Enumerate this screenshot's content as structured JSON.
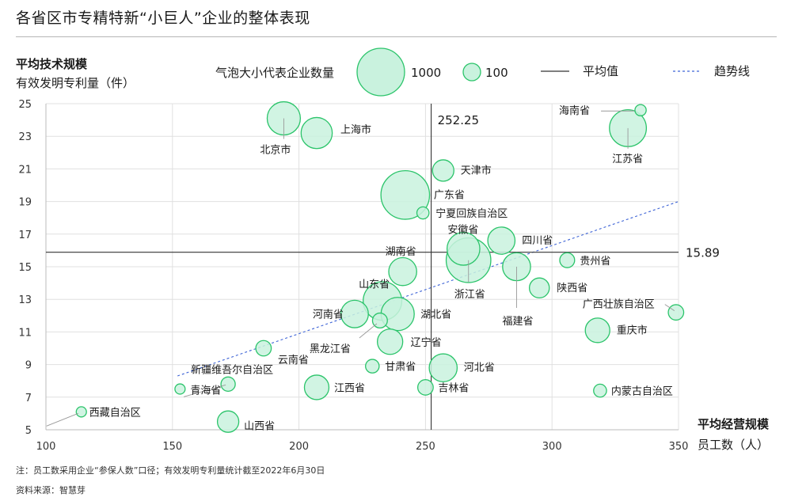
{
  "title": "各省区市专精特新“小巨人”企业的整体表现",
  "note": "注：员工数采用企业“参保人数”口径；有效发明专利量统计截至2022年6月30日",
  "source": "资料来源：智慧芽",
  "colors": {
    "bubble_fill": "#c9f2de",
    "bubble_stroke": "#2bc46a",
    "grid": "#e0e0e0",
    "avg_line": "#333333",
    "trend_line": "#3d63d6",
    "leader": "#999999"
  },
  "legend": {
    "size_label": "气泡大小代表企业数量",
    "big_label": "1000",
    "small_label": "100",
    "avg_label": "平均值",
    "trend_label": "趋势线"
  },
  "chart_data": {
    "type": "scatter",
    "ylabel_bold": "平均技术规模",
    "ylabel": "有效发明专利量（件）",
    "xlabel_bold": "平均经营规模",
    "xlabel": "员工数（人）",
    "xlim": [
      100,
      350
    ],
    "ylim": [
      5,
      25
    ],
    "x_ticks": [
      "100",
      "150",
      "200",
      "250",
      "300",
      "350"
    ],
    "y_ticks": [
      "5",
      "7",
      "9",
      "11",
      "13",
      "15",
      "17",
      "19",
      "21",
      "23",
      "25"
    ],
    "grid": true,
    "avg_x": 252.25,
    "avg_x_label": "252.25",
    "avg_y": 15.89,
    "avg_y_label": "15.89",
    "trend": {
      "x": [
        152,
        350
      ],
      "y": [
        8.3,
        19
      ]
    },
    "points": [
      {
        "name": "北京市",
        "x": 194,
        "y": 24.1,
        "size": 700
      },
      {
        "name": "上海市",
        "x": 207,
        "y": 23.2,
        "size": 600
      },
      {
        "name": "海南省",
        "x": 335,
        "y": 24.6,
        "size": 30
      },
      {
        "name": "江苏省",
        "x": 330,
        "y": 23.5,
        "size": 900
      },
      {
        "name": "天津市",
        "x": 257,
        "y": 20.9,
        "size": 230
      },
      {
        "name": "广东省",
        "x": 242,
        "y": 19.4,
        "size": 1700
      },
      {
        "name": "宁夏回族自治区",
        "x": 249,
        "y": 18.3,
        "size": 40
      },
      {
        "name": "安徽省",
        "x": 265,
        "y": 16.1,
        "size": 680
      },
      {
        "name": "四川省",
        "x": 280,
        "y": 16.6,
        "size": 430
      },
      {
        "name": "贵州省",
        "x": 306,
        "y": 15.4,
        "size": 80
      },
      {
        "name": "湖南省",
        "x": 241,
        "y": 14.7,
        "size": 460
      },
      {
        "name": "浙江省",
        "x": 267,
        "y": 15.4,
        "size": 1400
      },
      {
        "name": "福建省",
        "x": 286,
        "y": 15.0,
        "size": 460
      },
      {
        "name": "山东省",
        "x": 233,
        "y": 12.9,
        "size": 1000
      },
      {
        "name": "陕西省",
        "x": 295,
        "y": 13.7,
        "size": 190
      },
      {
        "name": "广西壮族自治区",
        "x": 349,
        "y": 12.2,
        "size": 90
      },
      {
        "name": "河南省",
        "x": 222,
        "y": 12.1,
        "size": 440
      },
      {
        "name": "湖北省",
        "x": 239,
        "y": 12.1,
        "size": 700
      },
      {
        "name": "黑龙江省",
        "x": 232,
        "y": 11.7,
        "size": 80
      },
      {
        "name": "重庆市",
        "x": 318,
        "y": 11.1,
        "size": 330
      },
      {
        "name": "辽宁省",
        "x": 236,
        "y": 10.4,
        "size": 360
      },
      {
        "name": "云南省",
        "x": 186,
        "y": 10.0,
        "size": 90
      },
      {
        "name": "甘肃省",
        "x": 229,
        "y": 8.9,
        "size": 60
      },
      {
        "name": "河北省",
        "x": 257,
        "y": 8.8,
        "size": 460
      },
      {
        "name": "新疆维吾尔自治区",
        "x": 172,
        "y": 7.8,
        "size": 70
      },
      {
        "name": "青海省",
        "x": 153,
        "y": 7.5,
        "size": 20
      },
      {
        "name": "江西省",
        "x": 207,
        "y": 7.6,
        "size": 330
      },
      {
        "name": "吉林省",
        "x": 250,
        "y": 7.6,
        "size": 90
      },
      {
        "name": "内蒙古自治区",
        "x": 319,
        "y": 7.4,
        "size": 50
      },
      {
        "name": "西藏自治区",
        "x": 114,
        "y": 6.1,
        "size": 20
      },
      {
        "name": "山西省",
        "x": 172,
        "y": 5.5,
        "size": 230
      }
    ]
  }
}
